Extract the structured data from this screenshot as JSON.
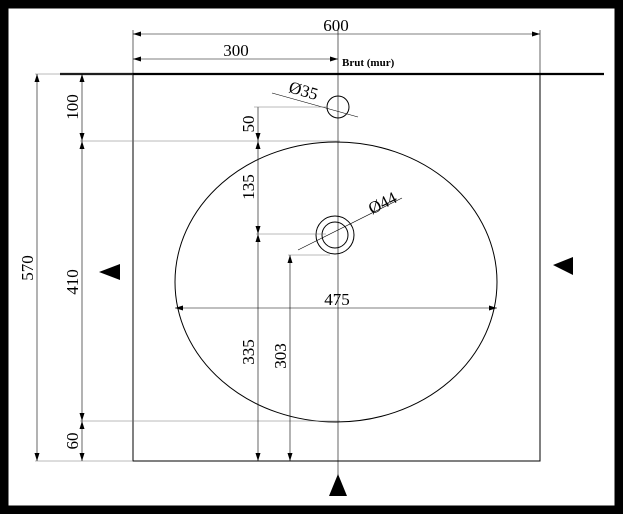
{
  "labels": {
    "overall_width": "600",
    "half_width": "300",
    "wall_note": "Brut (mur)",
    "tap_hole": "Ø35",
    "drain_hole": "Ø44",
    "top_margin": "100",
    "tap_offset": "50",
    "tap_to_drain": "135",
    "total_depth": "570",
    "bowl_depth": "410",
    "bowl_width": "475",
    "drain_to_front_bowl": "335",
    "drain_to_front_edge": "303",
    "front_margin": "60"
  }
}
